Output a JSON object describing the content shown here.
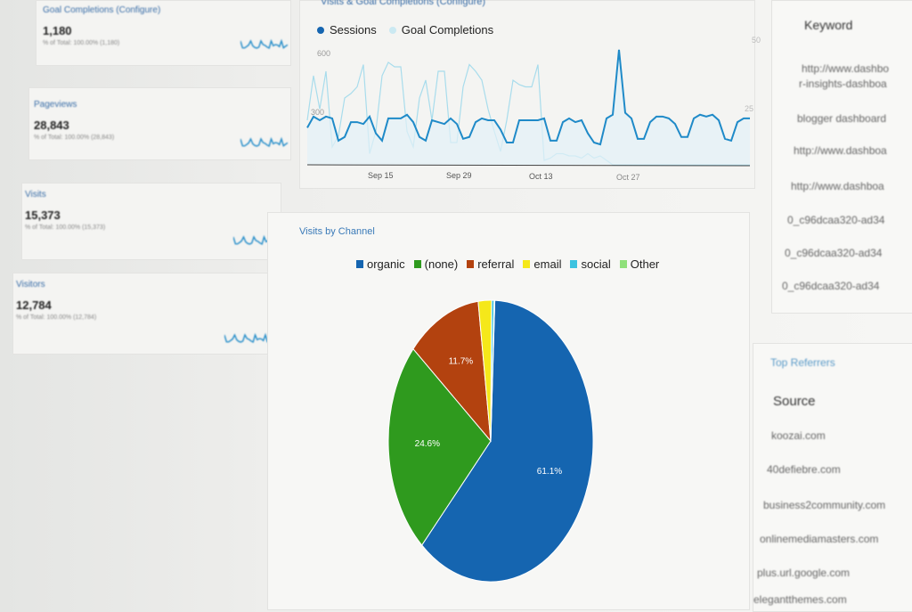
{
  "kpis": [
    {
      "title": "Goal Completions (Configure)",
      "value": "1,180",
      "sub": "% of Total: 100.00% (1,180)"
    },
    {
      "title": "Pageviews",
      "value": "28,843",
      "sub": "% of Total: 100.00% (28,843)"
    },
    {
      "title": "Visits",
      "value": "15,373",
      "sub": "% of Total: 100.00% (15,373)"
    },
    {
      "title": "Visitors",
      "value": "12,784",
      "sub": "% of Total: 100.00% (12,784)"
    }
  ],
  "line_title": "Visits & Goal Completions (Configure)",
  "pie_title": "Visits by Channel",
  "keyword": {
    "header": "Keyword",
    "items": [
      "http://www.dashbo",
      "r-insights-dashboa",
      "blogger dashboard",
      "http://www.dashboa",
      "http://www.dashboa",
      "0_c96dcaa320-ad34",
      "0_c96dcaa320-ad34",
      "0_c96dcaa320-ad34"
    ]
  },
  "referrers": {
    "title": "Top Referrers",
    "header": "Source",
    "items": [
      "koozai.com",
      "40defiebre.com",
      "business2community.com",
      "onlinemediamasters.com",
      "plus.url.google.com",
      "elegantthemes.com"
    ]
  },
  "chart_data": [
    {
      "type": "line",
      "series": [
        {
          "name": "Sessions",
          "color": "#1f8ac8",
          "axis": "left",
          "values": [
            200,
            260,
            240,
            260,
            250,
            130,
            150,
            230,
            230,
            220,
            260,
            170,
            130,
            250,
            250,
            250,
            270,
            230,
            150,
            130,
            240,
            230,
            220,
            250,
            220,
            140,
            150,
            230,
            250,
            240,
            240,
            190,
            120,
            120,
            240,
            240,
            240,
            240,
            250,
            130,
            130,
            230,
            250,
            230,
            240,
            170,
            120,
            110,
            250,
            270,
            620,
            280,
            250,
            140,
            140,
            230,
            260,
            260,
            250,
            220,
            150,
            150,
            250,
            270,
            260,
            270,
            240,
            140,
            130,
            230,
            250,
            250
          ]
        },
        {
          "name": "Goal Completions",
          "color": "#a8dcec",
          "axis": "right",
          "values": [
            20,
            40,
            25,
            42,
            8,
            13,
            30,
            32,
            35,
            45,
            5,
            15,
            40,
            46,
            44,
            44,
            15,
            8,
            30,
            38,
            20,
            42,
            42,
            10,
            10,
            35,
            45,
            42,
            38,
            25,
            15,
            6,
            20,
            38,
            36,
            35,
            35,
            45,
            2,
            3,
            5,
            5,
            4,
            4,
            3,
            5,
            3,
            4,
            2,
            0,
            0,
            0,
            0,
            0,
            0,
            0,
            0,
            0,
            0,
            0,
            0,
            0,
            0,
            0,
            0,
            0,
            0,
            0,
            0,
            0,
            0,
            0
          ]
        }
      ],
      "x_ticks": [
        "Sep 15",
        "Sep 29",
        "Oct 13",
        "Oct 27"
      ],
      "y_ticks_left": [
        "600",
        "300"
      ],
      "y_ticks_right": [
        "50",
        "25"
      ]
    },
    {
      "type": "pie",
      "title": "Visits by Channel",
      "categories": [
        "organic",
        "(none)",
        "referral",
        "email",
        "social",
        "Other"
      ],
      "values": [
        61.1,
        24.6,
        11.7,
        2.1,
        0.4,
        0.1
      ],
      "labels": [
        "61.1%",
        "24.6%",
        "11.7%",
        "",
        "",
        ""
      ],
      "colors": [
        "#1565b0",
        "#2f9a1e",
        "#b3420f",
        "#f5e81a",
        "#3cc3e0",
        "#8fe07a"
      ],
      "legend": "top"
    }
  ]
}
